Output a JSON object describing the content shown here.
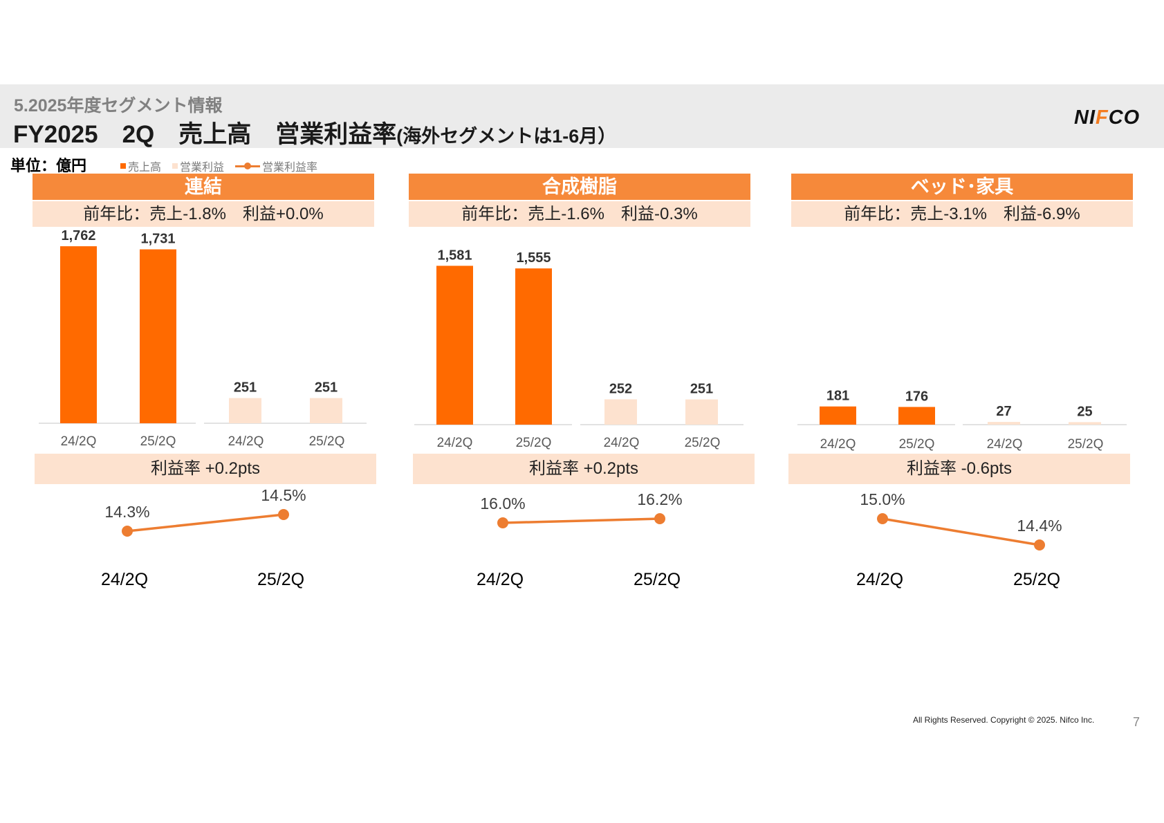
{
  "header": {
    "section": "5.2025年度セグメント情報",
    "title_main": "FY2025　2Q　売上高　営業利益率",
    "title_sub": "(海外セグメントは1-6月）",
    "logo_left": "NI",
    "logo_accent": "F",
    "logo_right": "CO"
  },
  "unit_label": "単位：億円",
  "legend": {
    "sales": "売上高",
    "profit": "営業利益",
    "rate": "営業利益率"
  },
  "colors": {
    "sales_bar": "#ff6a00",
    "profit_bar": "#fde2cf",
    "header_band": "#f6893a",
    "light_band": "#fde2cf",
    "line": "#ed7d31"
  },
  "panels": [
    {
      "title": "連結",
      "yoy": "前年比：売上-1.8%　利益+0.0%",
      "rate_change": "利益率 +0.2pts"
    },
    {
      "title": "合成樹脂",
      "yoy": "前年比：売上-1.6%　利益-0.3%",
      "rate_change": "利益率 +0.2pts"
    },
    {
      "title": "ベッド･家具",
      "yoy": "前年比：売上-3.1%　利益-6.9%",
      "rate_change": "利益率 -0.6pts"
    }
  ],
  "chart_data": [
    {
      "type": "bar",
      "title": "連結",
      "categories": [
        "24/2Q",
        "25/2Q",
        "24/2Q",
        "25/2Q"
      ],
      "series": [
        {
          "name": "売上高",
          "values": [
            1762,
            1731,
            null,
            null
          ]
        },
        {
          "name": "営業利益",
          "values": [
            null,
            null,
            251,
            251
          ]
        }
      ],
      "value_labels": [
        "1,762",
        "1,731",
        "251",
        "251"
      ],
      "ylim": [
        0,
        1900
      ]
    },
    {
      "type": "line",
      "title": "連結 営業利益率",
      "categories": [
        "24/2Q",
        "25/2Q"
      ],
      "values": [
        14.3,
        14.5
      ],
      "value_labels": [
        "14.3%",
        "14.5%"
      ],
      "ylim": [
        14.0,
        17.0
      ]
    },
    {
      "type": "bar",
      "title": "合成樹脂",
      "categories": [
        "24/2Q",
        "25/2Q",
        "24/2Q",
        "25/2Q"
      ],
      "series": [
        {
          "name": "売上高",
          "values": [
            1581,
            1555,
            null,
            null
          ]
        },
        {
          "name": "営業利益",
          "values": [
            null,
            null,
            252,
            251
          ]
        }
      ],
      "value_labels": [
        "1,581",
        "1,555",
        "252",
        "251"
      ],
      "ylim": [
        0,
        1900
      ]
    },
    {
      "type": "line",
      "title": "合成樹脂 営業利益率",
      "categories": [
        "24/2Q",
        "25/2Q"
      ],
      "values": [
        16.0,
        16.2
      ],
      "value_labels": [
        "16.0%",
        "16.2%"
      ],
      "ylim": [
        15.0,
        17.0
      ]
    },
    {
      "type": "bar",
      "title": "ベッド･家具",
      "categories": [
        "24/2Q",
        "25/2Q",
        "24/2Q",
        "25/2Q"
      ],
      "series": [
        {
          "name": "売上高",
          "values": [
            181,
            176,
            null,
            null
          ]
        },
        {
          "name": "営業利益",
          "values": [
            null,
            null,
            27,
            25
          ]
        }
      ],
      "value_labels": [
        "181",
        "176",
        "27",
        "25"
      ],
      "ylim": [
        0,
        1900
      ]
    },
    {
      "type": "line",
      "title": "ベッド･家具 営業利益率",
      "categories": [
        "24/2Q",
        "25/2Q"
      ],
      "values": [
        15.0,
        14.4
      ],
      "value_labels": [
        "15.0%",
        "14.4%"
      ],
      "ylim": [
        13.5,
        16.5
      ]
    }
  ],
  "footer": {
    "copyright": "All Rights Reserved. Copyright © 2025. Nifco Inc.",
    "page": "7"
  }
}
